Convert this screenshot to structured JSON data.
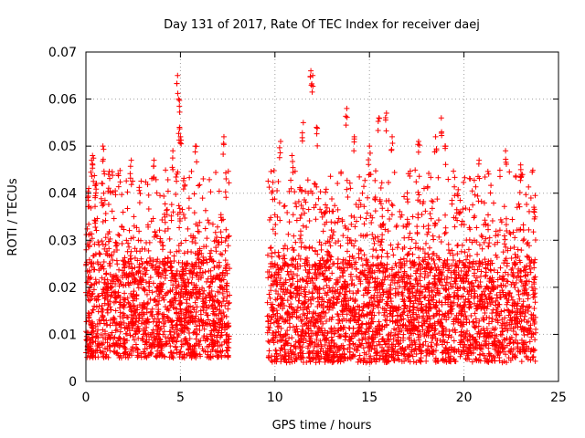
{
  "chart_data": {
    "type": "scatter",
    "title": "Day 131 of 2017, Rate Of TEC Index for receiver daej",
    "xlabel": "GPS time / hours",
    "ylabel": "ROTI / TECUs",
    "xlim": [
      0,
      25
    ],
    "ylim": [
      0,
      0.07
    ],
    "x_ticks": [
      "0",
      "5",
      "10",
      "15",
      "20",
      "25"
    ],
    "y_ticks": [
      "0",
      "0.01",
      "0.02",
      "0.03",
      "0.04",
      "0.05",
      "0.06",
      "0.07"
    ],
    "grid": true,
    "marker": "+",
    "series": [
      {
        "color": "#ff0000",
        "segments": [
          {
            "x_range": [
              0,
              7.6
            ],
            "typical": [
              0.005,
              0.025
            ],
            "upper": [
              0.025,
              0.045
            ],
            "peaks": [
              [
                0.15,
                0.041
              ],
              [
                0.3,
                0.047
              ],
              [
                0.35,
                0.048
              ],
              [
                0.9,
                0.05
              ],
              [
                1.2,
                0.044
              ],
              [
                2.4,
                0.047
              ],
              [
                3.6,
                0.047
              ],
              [
                4.6,
                0.049
              ],
              [
                4.85,
                0.065
              ],
              [
                4.9,
                0.06
              ],
              [
                4.95,
                0.054
              ],
              [
                5.0,
                0.052
              ],
              [
                5.8,
                0.05
              ],
              [
                7.3,
                0.052
              ]
            ]
          },
          {
            "x_range": [
              9.6,
              23.8
            ],
            "typical": [
              0.004,
              0.025
            ],
            "upper": [
              0.025,
              0.045
            ],
            "peaks": [
              [
                10.3,
                0.051
              ],
              [
                10.9,
                0.048
              ],
              [
                11.5,
                0.055
              ],
              [
                11.9,
                0.066
              ],
              [
                12.0,
                0.065
              ],
              [
                12.2,
                0.054
              ],
              [
                13.8,
                0.058
              ],
              [
                14.2,
                0.052
              ],
              [
                15.0,
                0.05
              ],
              [
                15.5,
                0.056
              ],
              [
                15.9,
                0.057
              ],
              [
                16.2,
                0.052
              ],
              [
                17.6,
                0.051
              ],
              [
                18.5,
                0.052
              ],
              [
                18.8,
                0.056
              ],
              [
                19.0,
                0.05
              ],
              [
                20.8,
                0.047
              ],
              [
                22.2,
                0.049
              ],
              [
                23.0,
                0.046
              ],
              [
                23.7,
                0.037
              ]
            ]
          }
        ]
      }
    ]
  }
}
